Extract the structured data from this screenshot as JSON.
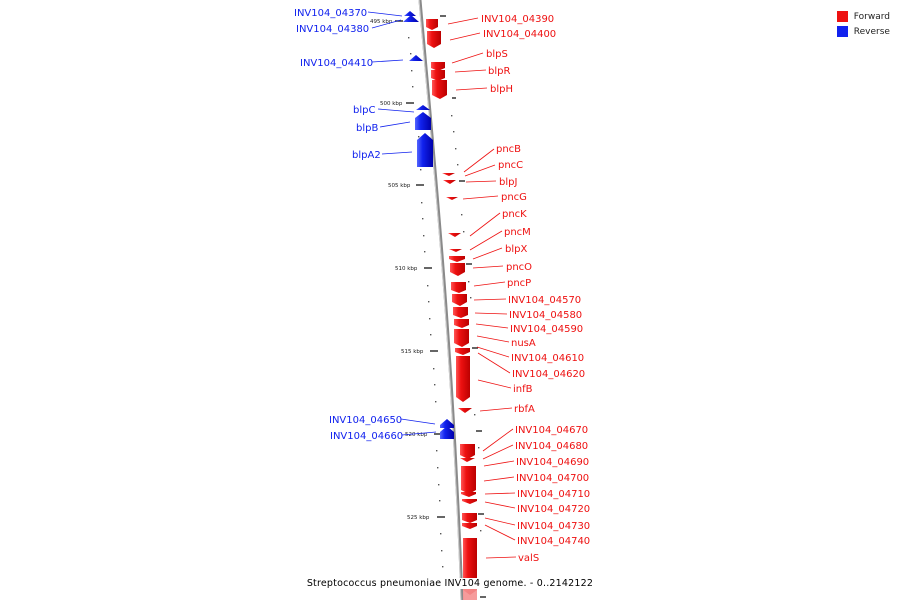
{
  "caption": "Streptococcus pneumoniae INV104 genome. - 0..2142122",
  "legend": [
    {
      "label": "Forward",
      "color": "#ee1111"
    },
    {
      "label": "Reverse",
      "color": "#1122ee"
    }
  ],
  "colors": {
    "forward": "#ee1111",
    "reverse": "#1122ee",
    "backbone": "#777777"
  },
  "ticks": [
    "495 kbp",
    "500 kbp",
    "505 kbp",
    "510 kbp",
    "515 kbp",
    "520 kbp",
    "525 kbp"
  ],
  "forward_genes": [
    "INV104_04390",
    "INV104_04400",
    "blpS",
    "blpR",
    "blpH",
    "pncB",
    "pncC",
    "blpJ",
    "pncG",
    "pncK",
    "pncM",
    "blpX",
    "pncO",
    "pncP",
    "INV104_04570",
    "INV104_04580",
    "INV104_04590",
    "nusA",
    "INV104_04610",
    "INV104_04620",
    "infB",
    "rbfA",
    "INV104_04670",
    "INV104_04680",
    "INV104_04690",
    "INV104_04700",
    "INV104_04710",
    "INV104_04720",
    "INV104_04730",
    "INV104_04740",
    "valS"
  ],
  "reverse_genes": [
    "INV104_04370",
    "INV104_04380",
    "INV104_04410",
    "blpC",
    "blpB",
    "blpA2",
    "INV104_04650",
    "INV104_04660"
  ]
}
